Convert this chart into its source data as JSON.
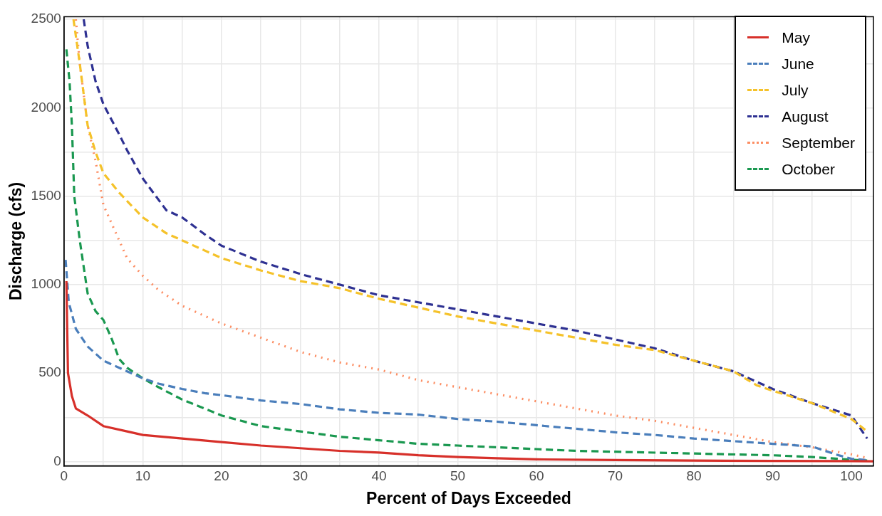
{
  "chart_data": {
    "type": "line",
    "xlabel": "Percent of Days Exceeded",
    "ylabel": "Discharge (cfs)",
    "xlim": [
      0,
      102.8
    ],
    "ylim": [
      -25,
      2515
    ],
    "xticks": [
      0,
      {
        "value": 5,
        "label": null
      },
      10,
      {
        "value": 15,
        "label": null
      },
      20,
      {
        "value": 25,
        "label": null
      },
      30,
      {
        "value": 35,
        "label": null
      },
      40,
      {
        "value": 45,
        "label": null
      },
      50,
      {
        "value": 55,
        "label": null
      },
      60,
      {
        "value": 65,
        "label": null
      },
      70,
      {
        "value": 75,
        "label": null
      },
      80,
      {
        "value": 85,
        "label": null
      },
      90,
      {
        "value": 95,
        "label": null
      },
      100
    ],
    "yticks": [
      0,
      {
        "value": 250,
        "label": null
      },
      500,
      {
        "value": 750,
        "label": null
      },
      1000,
      {
        "value": 1250,
        "label": null
      },
      1500,
      {
        "value": 1750,
        "label": null
      },
      2000,
      {
        "value": 2250,
        "label": null
      },
      2500
    ],
    "grid": true,
    "legend": "top right",
    "marker": "none",
    "series": [
      {
        "name": "May",
        "color": "#d7302a",
        "line_style": "solid",
        "x": [
          0.3,
          0.5,
          1,
          1.5,
          3,
          5,
          8,
          10,
          15,
          20,
          25,
          30,
          35,
          40,
          45,
          50,
          55,
          60,
          70,
          80,
          90,
          100,
          102.8
        ],
        "values": [
          1020,
          500,
          370,
          300,
          260,
          200,
          170,
          150,
          130,
          110,
          90,
          75,
          60,
          50,
          35,
          25,
          18,
          12,
          8,
          5,
          3,
          2,
          1
        ]
      },
      {
        "name": "June",
        "color": "#4a7ebb",
        "line_style": "dashed",
        "x": [
          0.2,
          0.6,
          1.5,
          3,
          5,
          7,
          10,
          12,
          15,
          18,
          20,
          25,
          30,
          35,
          40,
          45,
          50,
          55,
          60,
          65,
          70,
          75,
          80,
          85,
          90,
          95,
          98,
          100,
          102
        ],
        "values": [
          1140,
          900,
          750,
          650,
          570,
          530,
          470,
          440,
          410,
          385,
          375,
          345,
          325,
          295,
          275,
          265,
          240,
          225,
          205,
          185,
          165,
          150,
          130,
          115,
          100,
          85,
          40,
          15,
          8
        ]
      },
      {
        "name": "July",
        "color": "#f5c22a",
        "line_style": "dashed",
        "x": [
          1.2,
          2,
          3,
          4,
          5,
          7,
          10,
          13,
          15,
          20,
          25,
          30,
          35,
          40,
          45,
          50,
          55,
          60,
          65,
          70,
          75,
          80,
          85,
          88,
          90,
          95,
          100,
          102
        ],
        "values": [
          2500,
          2250,
          1900,
          1750,
          1630,
          1520,
          1380,
          1290,
          1250,
          1150,
          1080,
          1020,
          980,
          920,
          870,
          820,
          780,
          740,
          700,
          660,
          630,
          570,
          510,
          430,
          400,
          330,
          240,
          170
        ]
      },
      {
        "name": "August",
        "color": "#2e3192",
        "line_style": "dashed",
        "x": [
          2.5,
          3,
          4,
          5,
          7,
          8,
          10,
          13,
          15,
          18,
          20,
          25,
          30,
          35,
          40,
          45,
          50,
          55,
          60,
          65,
          70,
          75,
          80,
          85,
          90,
          95,
          100,
          102
        ],
        "values": [
          2500,
          2350,
          2150,
          2020,
          1850,
          1760,
          1600,
          1420,
          1380,
          1280,
          1220,
          1130,
          1060,
          1000,
          940,
          900,
          860,
          820,
          780,
          740,
          690,
          640,
          570,
          510,
          410,
          330,
          260,
          130
        ]
      },
      {
        "name": "September",
        "color": "#fc8d62",
        "line_style": "dotted",
        "x": [
          1.5,
          2,
          3,
          4,
          5,
          7,
          8,
          10,
          12,
          15,
          20,
          25,
          30,
          35,
          40,
          45,
          50,
          55,
          60,
          65,
          70,
          75,
          80,
          85,
          90,
          95,
          100,
          102
        ],
        "values": [
          2500,
          2250,
          1900,
          1700,
          1450,
          1250,
          1150,
          1050,
          970,
          880,
          780,
          700,
          620,
          560,
          520,
          460,
          420,
          380,
          340,
          300,
          260,
          230,
          190,
          150,
          110,
          80,
          40,
          20
        ]
      },
      {
        "name": "October",
        "color": "#1a9850",
        "line_style": "dashed",
        "x": [
          0.3,
          0.7,
          1,
          1.3,
          2,
          3,
          4,
          5,
          6,
          7,
          8,
          10,
          12,
          15,
          20,
          25,
          30,
          35,
          40,
          45,
          50,
          55,
          60,
          65,
          70,
          80,
          90,
          95,
          100,
          102
        ],
        "values": [
          2330,
          2150,
          1900,
          1500,
          1250,
          950,
          850,
          800,
          700,
          580,
          530,
          470,
          420,
          350,
          260,
          200,
          170,
          140,
          120,
          100,
          90,
          80,
          70,
          60,
          55,
          45,
          35,
          25,
          10,
          5
        ]
      }
    ]
  }
}
